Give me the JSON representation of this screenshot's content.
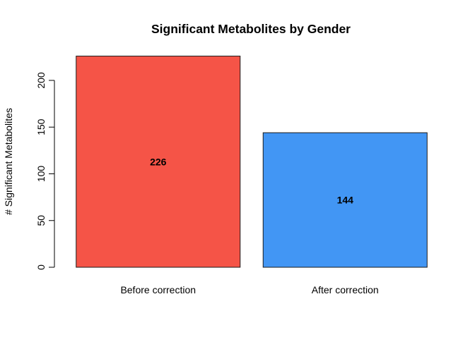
{
  "chart_data": {
    "type": "bar",
    "title": "Significant Metabolites by Gender",
    "xlabel": "",
    "ylabel": "# Significant Metabolites",
    "categories": [
      "Before correction",
      "After correction"
    ],
    "values": [
      226,
      144
    ],
    "data_labels": [
      "226",
      "144"
    ],
    "bar_colors": [
      "#F55447",
      "#4296F4"
    ],
    "ylim": [
      0,
      226
    ],
    "yticks": [
      0,
      50,
      100,
      150,
      200
    ],
    "ytick_labels": [
      "0",
      "50",
      "100",
      "150",
      "200"
    ],
    "grid": false,
    "legend": "none"
  }
}
